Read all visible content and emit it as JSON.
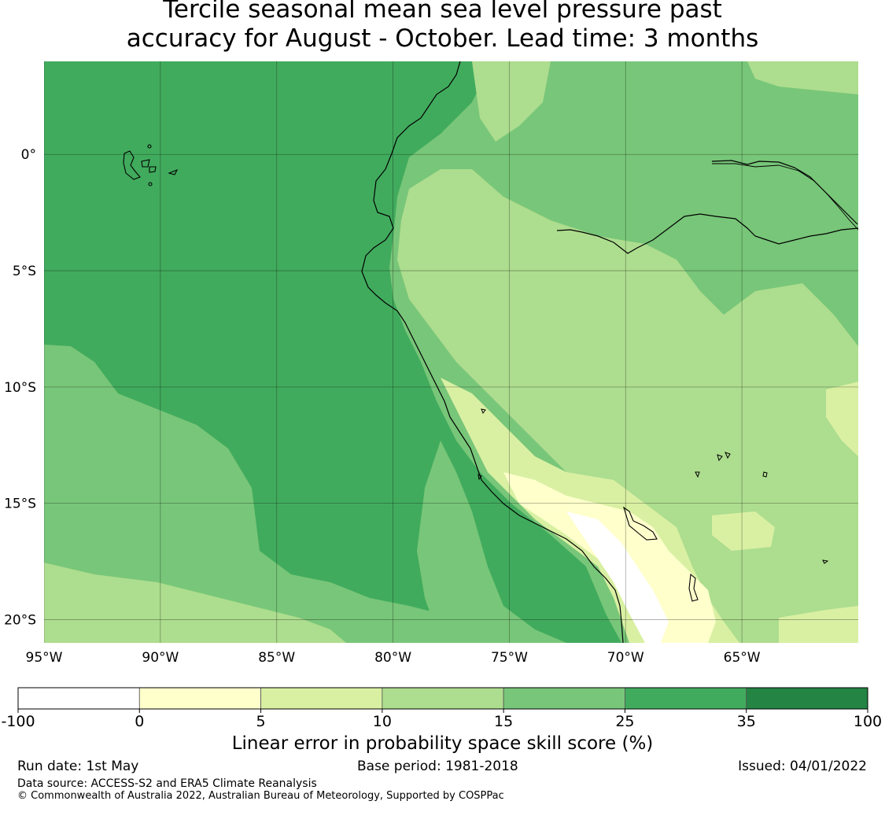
{
  "title": {
    "line1": "Tercile seasonal mean sea level pressure past",
    "line2": "accuracy for August - October. Lead time: 3 months"
  },
  "map": {
    "lon_ticks": [
      "95°W",
      "90°W",
      "85°W",
      "80°W",
      "75°W",
      "70°W",
      "65°W"
    ],
    "lat_ticks": [
      "0°",
      "5°S",
      "10°S",
      "15°S",
      "20°S"
    ],
    "lon_range": [
      -95,
      -60
    ],
    "lat_range": [
      -21,
      4
    ]
  },
  "colorbar": {
    "label": "Linear error in probability space skill score (%)",
    "ticks": [
      "-100",
      "0",
      "5",
      "10",
      "15",
      "25",
      "35",
      "100"
    ],
    "colors": [
      "#ffffff",
      "#ffffcc",
      "#d9f0a3",
      "#addd8e",
      "#78c679",
      "#41ab5d",
      "#238443"
    ]
  },
  "footer": {
    "run_date": "Run date: 1st May",
    "base_period": "Base period: 1981-2018",
    "issued": "Issued: 04/01/2022",
    "data_source": "Data source: ACCESS-S2 and ERA5 Climate Reanalysis",
    "copyright": "© Commonwealth of Australia 2022, Australian Bureau of Meteorology, Supported by COSPPac"
  }
}
